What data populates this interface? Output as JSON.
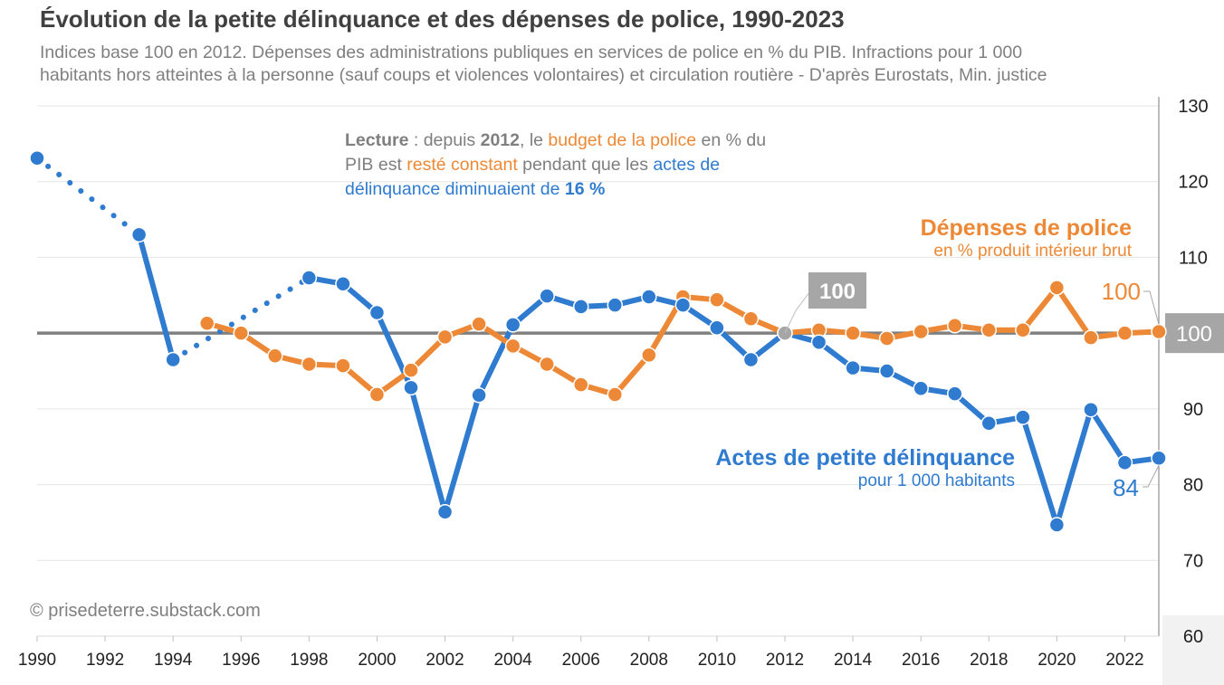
{
  "header": {
    "title": "Évolution de la petite délinquance et des dépenses de police, 1990-2023",
    "subtitle_line1": "Indices base 100 en 2012. Dépenses des administrations publiques  en services de police en % du PIB. Infractions pour 1 000",
    "subtitle_line2": "habitants hors atteintes à la personne (sauf coups et violences volontaires) et circulation routière - D'après Eurostats, Min. justice"
  },
  "annotation": {
    "p1": "Lecture",
    "p2": " : depuis ",
    "p3": "2012",
    "p4": ", le ",
    "p5": "budget de la police",
    "p6": " en % du PIB est ",
    "p7": "resté constant",
    "p8": " pendant que les ",
    "p9": "actes de délinquance  diminuaient  de ",
    "p10": "16 %"
  },
  "series_labels": {
    "police_title": "Dépenses de police",
    "police_sub": "en % produit intérieur brut",
    "crime_title": "Actes de petite délinquance",
    "crime_sub": "pour 1 000 habitants"
  },
  "value_labels": {
    "base_2012": "100",
    "police_end": "100",
    "crime_end": "84",
    "axis_base": "100"
  },
  "credit": "© prisedeterre.substack.com",
  "chart_data": {
    "type": "line",
    "title": "Évolution de la petite délinquance et des dépenses de police, 1990-2023",
    "xlim": [
      1990,
      2023
    ],
    "ylim": [
      60,
      130
    ],
    "x_ticks": [
      "1990",
      "1992",
      "1994",
      "1996",
      "1998",
      "2000",
      "2002",
      "2004",
      "2006",
      "2008",
      "2010",
      "2012",
      "2014",
      "2016",
      "2018",
      "2020",
      "2022"
    ],
    "y_ticks": [
      "60",
      "70",
      "80",
      "90",
      "100",
      "110",
      "120",
      "130"
    ],
    "reference_line": 100,
    "series": [
      {
        "name": "Actes de petite délinquance",
        "color": "#2f7bd0",
        "x": [
          1990,
          1993,
          1994,
          1998,
          1999,
          2000,
          2001,
          2002,
          2003,
          2004,
          2005,
          2006,
          2007,
          2008,
          2009,
          2010,
          2011,
          2012,
          2013,
          2014,
          2015,
          2016,
          2017,
          2018,
          2019,
          2020,
          2021,
          2022,
          2023
        ],
        "values": [
          123.1,
          113.0,
          96.5,
          107.3,
          106.5,
          102.7,
          92.8,
          76.4,
          91.8,
          101.1,
          104.9,
          103.5,
          103.7,
          104.8,
          103.7,
          100.7,
          96.5,
          100,
          98.8,
          95.4,
          95.0,
          92.7,
          92.0,
          88.1,
          88.9,
          74.7,
          89.9,
          82.9,
          83.5
        ],
        "dotted_segments": [
          [
            1990,
            1993
          ],
          [
            1994,
            1998
          ]
        ]
      },
      {
        "name": "Dépenses de police",
        "color": "#ed8936",
        "x": [
          1995,
          1996,
          1997,
          1998,
          1999,
          2000,
          2001,
          2002,
          2003,
          2004,
          2005,
          2006,
          2007,
          2008,
          2009,
          2010,
          2011,
          2012,
          2013,
          2014,
          2015,
          2016,
          2017,
          2018,
          2019,
          2020,
          2021,
          2022,
          2023
        ],
        "values": [
          101.3,
          100,
          97.0,
          95.9,
          95.7,
          91.9,
          95.1,
          99.5,
          101.2,
          98.3,
          95.9,
          93.2,
          91.9,
          97.1,
          104.8,
          104.4,
          101.9,
          100,
          100.4,
          100,
          99.3,
          100.2,
          101.0,
          100.4,
          100.4,
          106.0,
          99.4,
          100,
          100.2
        ]
      }
    ]
  }
}
